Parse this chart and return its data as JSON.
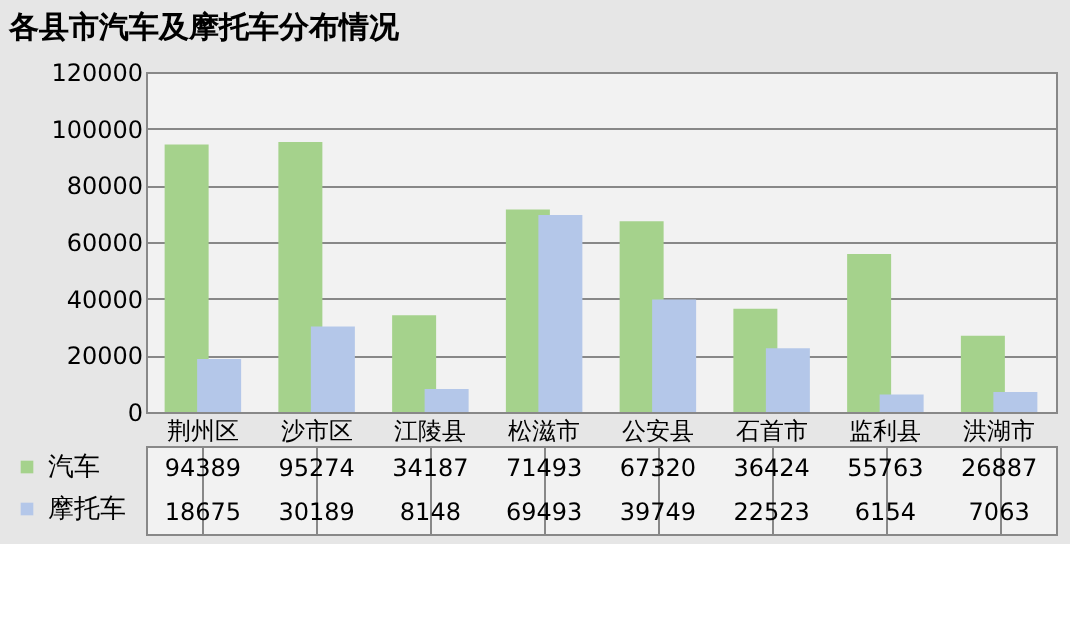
{
  "chart_data": {
    "type": "bar",
    "title": "各县市汽车及摩托车分布情况",
    "categories": [
      "荆州区",
      "沙市区",
      "江陵县",
      "松滋市",
      "公安县",
      "石首市",
      "监利县",
      "洪湖市"
    ],
    "series": [
      {
        "name": "汽车",
        "color": "#a5d28c",
        "values": [
          94389,
          95274,
          34187,
          71493,
          67320,
          36424,
          55763,
          26887
        ]
      },
      {
        "name": "摩托车",
        "color": "#b4c7e9",
        "values": [
          18675,
          30189,
          8148,
          69493,
          39749,
          22523,
          6154,
          7063
        ]
      }
    ],
    "ylim": [
      0,
      120000
    ],
    "yticks": [
      0,
      20000,
      40000,
      60000,
      80000,
      100000,
      120000
    ],
    "grid": "y",
    "legend": "bottom",
    "data_labels": true
  }
}
